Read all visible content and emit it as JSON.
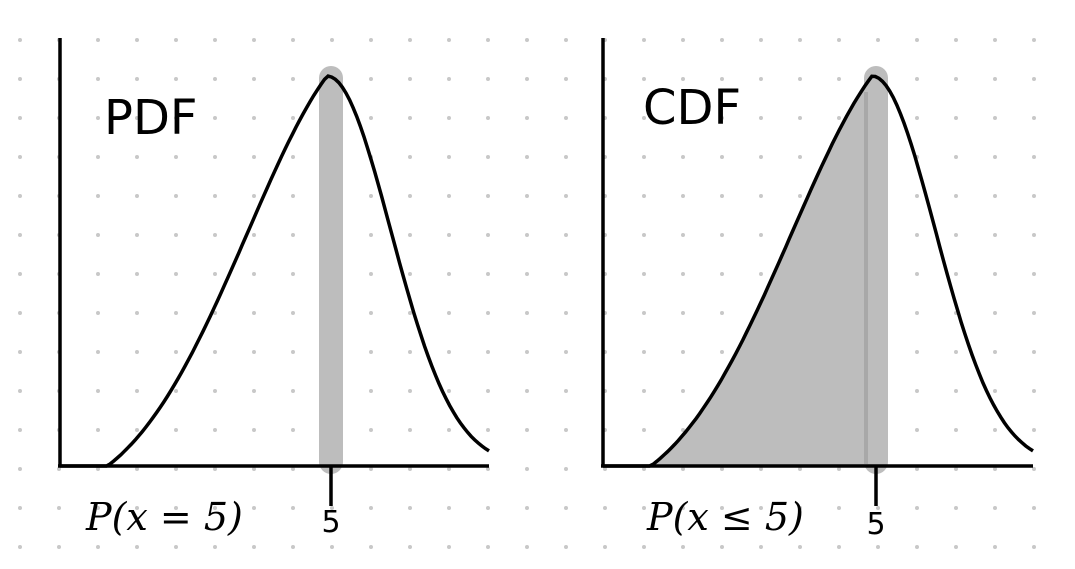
{
  "panels": [
    {
      "title": "PDF",
      "tick_label": "5",
      "formula": "P(x = 5)"
    },
    {
      "title": "CDF",
      "tick_label": "5",
      "formula": "P(x ≤ 5)"
    }
  ],
  "colors": {
    "background": "#ffffff",
    "dot_grid": "#c8c8c8",
    "curve": "#000000",
    "highlight": "#bdbdbd",
    "highlight_edge": "#a0a0a0"
  }
}
